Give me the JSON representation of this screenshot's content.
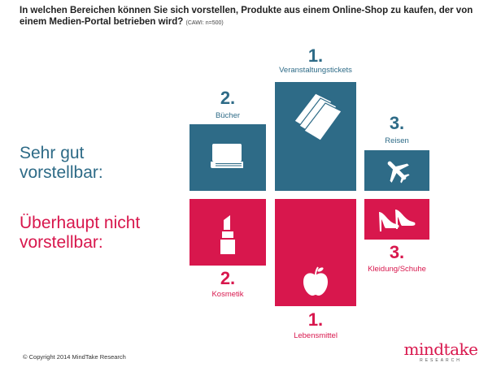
{
  "title": "In welchen Bereichen können Sie sich vorstellen, Produkte aus einem Online-Shop zu kaufen, der von einem Medien-Portal betrieben wird?",
  "note": "(CAWI: n=500)",
  "row_labels": {
    "good_line1": "Sehr gut",
    "good_line2": "vorstellbar:",
    "bad_line1": "Überhaupt nicht",
    "bad_line2": "vorstellbar:"
  },
  "chart_data": {
    "type": "table",
    "title": "In welchen Bereichen können Sie sich vorstellen, Produkte aus einem Online-Shop zu kaufen, der von einem Medien-Portal betrieben wird?",
    "groups": [
      {
        "name": "Sehr gut vorstellbar",
        "color": "#2e6b87",
        "items": [
          {
            "rank": "1.",
            "category": "Veranstaltungstickets",
            "icon": "tickets-icon"
          },
          {
            "rank": "2.",
            "category": "Bücher",
            "icon": "book-icon"
          },
          {
            "rank": "3.",
            "category": "Reisen",
            "icon": "airplane-icon"
          }
        ]
      },
      {
        "name": "Überhaupt nicht vorstellbar",
        "color": "#d8174d",
        "items": [
          {
            "rank": "1.",
            "category": "Lebensmittel",
            "icon": "apple-icon"
          },
          {
            "rank": "2.",
            "category": "Kosmetik",
            "icon": "lipstick-icon"
          },
          {
            "rank": "3.",
            "category": "Kleidung/Schuhe",
            "icon": "high-heels-icon"
          }
        ]
      }
    ]
  },
  "footer": {
    "copyright": "© Copyright 2014 MindTake Research",
    "logo_main": "mindtake",
    "logo_sub": "RESEARCH"
  },
  "colors": {
    "accent_blue": "#2e6b87",
    "accent_red": "#d8174d"
  }
}
